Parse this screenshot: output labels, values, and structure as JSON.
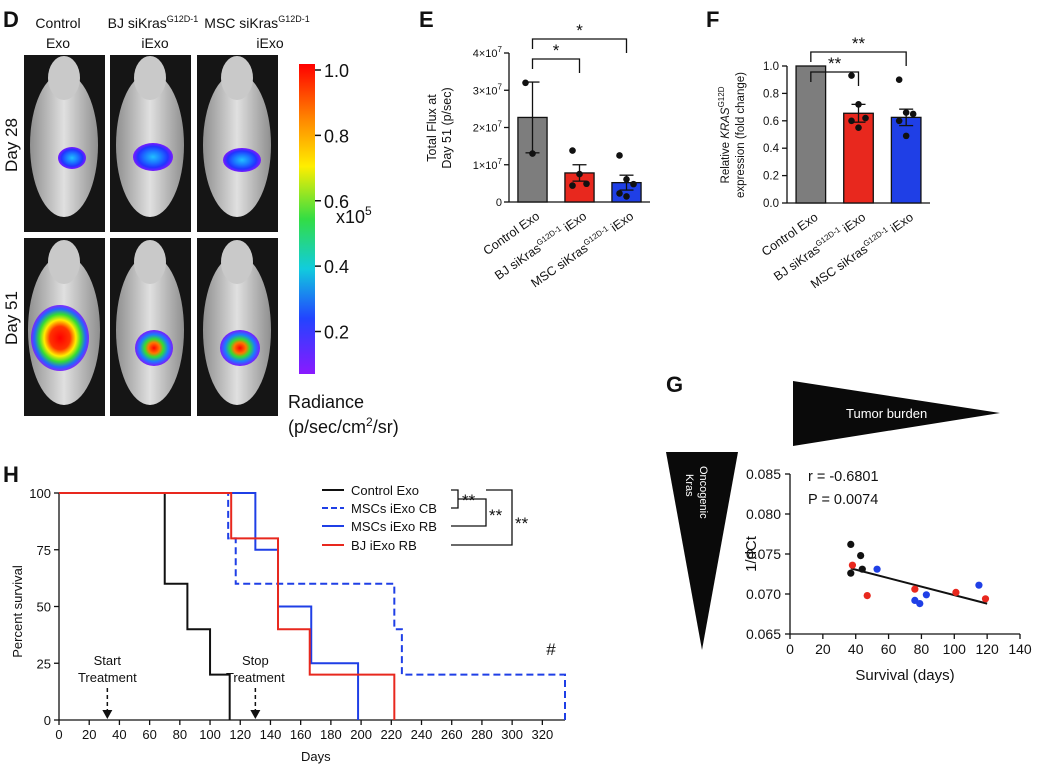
{
  "panel_letters": {
    "D": "D",
    "E": "E",
    "F": "F",
    "G": "G",
    "H": "H"
  },
  "panel_d": {
    "col1": [
      "Control",
      "Exo"
    ],
    "col2": {
      "base": "BJ siKras",
      "sup": "G12D-1",
      "sub": "iExo"
    },
    "col3": {
      "base": "MSC siKras",
      "sup": "G12D-1",
      "sub": "iExo"
    },
    "rows": [
      "Day 28",
      "Day 51"
    ],
    "colorbar": {
      "ticks": [
        "1.0",
        "0.8",
        "0.6",
        "0.4",
        "0.2"
      ],
      "tick_values": [
        1.0,
        0.8,
        0.6,
        0.4,
        0.2
      ],
      "scale_base": "x10",
      "scale_exp": "5",
      "title": "Radiance",
      "unit": {
        "a": "(p/sec/cm",
        "sup": "2",
        "b": "/sr)"
      }
    }
  },
  "chart_data": [
    {
      "panel": "E",
      "type": "bar",
      "ylabel": [
        "Total Flux at",
        "Day 51 (p/sec)"
      ],
      "ylim": [
        0,
        40000000
      ],
      "yticks": [
        {
          "v": 0,
          "b": "0",
          "e": ""
        },
        {
          "v": 10000000,
          "b": "1×10",
          "e": "7"
        },
        {
          "v": 20000000,
          "b": "2×10",
          "e": "7"
        },
        {
          "v": 30000000,
          "b": "3×10",
          "e": "7"
        },
        {
          "v": 40000000,
          "b": "4×10",
          "e": "7"
        }
      ],
      "categories": [
        {
          "a": "Control Exo",
          "sup": "",
          "b": ""
        },
        {
          "a": "BJ siKras",
          "sup": "G12D-1",
          "b": " iExo"
        },
        {
          "a": "MSC siKras",
          "sup": "G12D-1",
          "b": " iExo"
        }
      ],
      "values": [
        22700000,
        7800000,
        5200000
      ],
      "errors": [
        9500000,
        2200000,
        2000000
      ],
      "points": [
        [
          32000000,
          13000000
        ],
        [
          13800000,
          7500000,
          4900000,
          4400000
        ],
        [
          12500000,
          6100000,
          4800000,
          2300000,
          1500000
        ]
      ],
      "colors": [
        "#7d7d7d",
        "#e8281e",
        "#1f3fe6"
      ],
      "significance": [
        {
          "from": 0,
          "to": 1,
          "label": "*"
        },
        {
          "from": 0,
          "to": 2,
          "label": "*"
        }
      ]
    },
    {
      "panel": "F",
      "type": "bar",
      "ylabel_lines": [
        {
          "a": "Relative ",
          "i": "KRAS",
          "sup": "G12D",
          "b": ""
        },
        {
          "a": "expression (fold change)",
          "i": "",
          "sup": "",
          "b": ""
        }
      ],
      "ylim": [
        0,
        1.0
      ],
      "yticks": [
        0,
        0.2,
        0.4,
        0.6,
        0.8,
        1.0
      ],
      "ytick_labels": [
        "0.0",
        "0.2",
        "0.4",
        "0.6",
        "0.8",
        "1.0"
      ],
      "categories": [
        {
          "a": "Control Exo",
          "sup": "",
          "b": ""
        },
        {
          "a": "BJ siKras",
          "sup": "G12D-1",
          "b": " iExo"
        },
        {
          "a": "MSC siKras",
          "sup": "G12D-1",
          "b": " iExo"
        }
      ],
      "values": [
        1.0,
        0.655,
        0.625
      ],
      "errors": [
        0,
        0.065,
        0.06
      ],
      "points": [
        [],
        [
          0.93,
          0.72,
          0.62,
          0.6,
          0.55
        ],
        [
          0.9,
          0.66,
          0.65,
          0.6,
          0.49
        ]
      ],
      "colors": [
        "#7d7d7d",
        "#e8281e",
        "#1f3fe6"
      ],
      "significance": [
        {
          "from": 0,
          "to": 1,
          "label": "**"
        },
        {
          "from": 0,
          "to": 2,
          "label": "**"
        }
      ]
    },
    {
      "panel": "G",
      "type": "scatter",
      "xlabel": "Survival (days)",
      "ylabel": "1/dCt",
      "xlim": [
        0,
        140
      ],
      "ylim": [
        0.065,
        0.085
      ],
      "xticks": [
        0,
        20,
        40,
        60,
        80,
        100,
        120,
        140
      ],
      "yticks": [
        0.065,
        0.07,
        0.075,
        0.08,
        0.085
      ],
      "ytick_labels": [
        "0.065",
        "0.070",
        "0.075",
        "0.080",
        "0.085"
      ],
      "annotation": [
        "r = -0.6801",
        "P =  0.0074"
      ],
      "points": [
        {
          "x": 37,
          "y": 0.0762,
          "c": "#111111"
        },
        {
          "x": 37,
          "y": 0.0726,
          "c": "#111111"
        },
        {
          "x": 43,
          "y": 0.0748,
          "c": "#111111"
        },
        {
          "x": 44,
          "y": 0.0731,
          "c": "#111111"
        },
        {
          "x": 38,
          "y": 0.0736,
          "c": "#e8281e"
        },
        {
          "x": 47,
          "y": 0.0698,
          "c": "#e8281e"
        },
        {
          "x": 76,
          "y": 0.0706,
          "c": "#e8281e"
        },
        {
          "x": 101,
          "y": 0.0702,
          "c": "#e8281e"
        },
        {
          "x": 119,
          "y": 0.0694,
          "c": "#e8281e"
        },
        {
          "x": 53,
          "y": 0.0731,
          "c": "#1f3fe6"
        },
        {
          "x": 76,
          "y": 0.0692,
          "c": "#1f3fe6"
        },
        {
          "x": 79,
          "y": 0.0688,
          "c": "#1f3fe6"
        },
        {
          "x": 83,
          "y": 0.0699,
          "c": "#1f3fe6"
        },
        {
          "x": 115,
          "y": 0.0711,
          "c": "#1f3fe6"
        }
      ],
      "fit_line": {
        "x": [
          37,
          120
        ],
        "y": [
          0.0732,
          0.0688
        ]
      }
    },
    {
      "panel": "H",
      "type": "line",
      "xlabel": "Days",
      "ylabel": "Percent survival",
      "xlim": [
        0,
        335
      ],
      "ylim": [
        0,
        100
      ],
      "xticks": [
        0,
        20,
        40,
        60,
        80,
        100,
        120,
        140,
        160,
        180,
        200,
        220,
        240,
        260,
        280,
        300,
        320
      ],
      "yticks": [
        0,
        25,
        50,
        75,
        100
      ],
      "series": [
        {
          "name": "Control Exo",
          "color": "#111111",
          "dash": false,
          "x": [
            0,
            70,
            70,
            85,
            85,
            100,
            100,
            113,
            113
          ],
          "y": [
            100,
            100,
            60,
            60,
            40,
            40,
            20,
            20,
            0
          ]
        },
        {
          "name": "MSCs iExo CB",
          "color": "#1f3fe6",
          "dash": true,
          "x": [
            0,
            112,
            112,
            117,
            117,
            222,
            222,
            227,
            227,
            335,
            335
          ],
          "y": [
            100,
            100,
            80,
            80,
            60,
            60,
            40,
            40,
            20,
            20,
            0
          ]
        },
        {
          "name": "MSCs iExo RB",
          "color": "#1f3fe6",
          "dash": false,
          "x": [
            0,
            130,
            130,
            145,
            145,
            167,
            167,
            198,
            198
          ],
          "y": [
            100,
            100,
            75,
            75,
            50,
            50,
            25,
            25,
            0
          ]
        },
        {
          "name": "BJ iExo RB",
          "color": "#e8281e",
          "dash": false,
          "x": [
            0,
            114,
            114,
            145,
            145,
            166,
            166,
            222,
            222
          ],
          "y": [
            100,
            100,
            80,
            80,
            40,
            40,
            20,
            20,
            0
          ]
        }
      ],
      "stats": [
        "**",
        "**",
        "**"
      ],
      "hash": "#",
      "arrows": [
        {
          "x": 32,
          "lines": [
            "Start",
            "Treatment"
          ]
        },
        {
          "x": 130,
          "lines": [
            "Stop",
            "Treatment"
          ]
        }
      ]
    }
  ],
  "panel_g_axes": {
    "top": "Tumor burden",
    "left_lines": [
      "Oncogenic",
      "Kras"
    ]
  }
}
